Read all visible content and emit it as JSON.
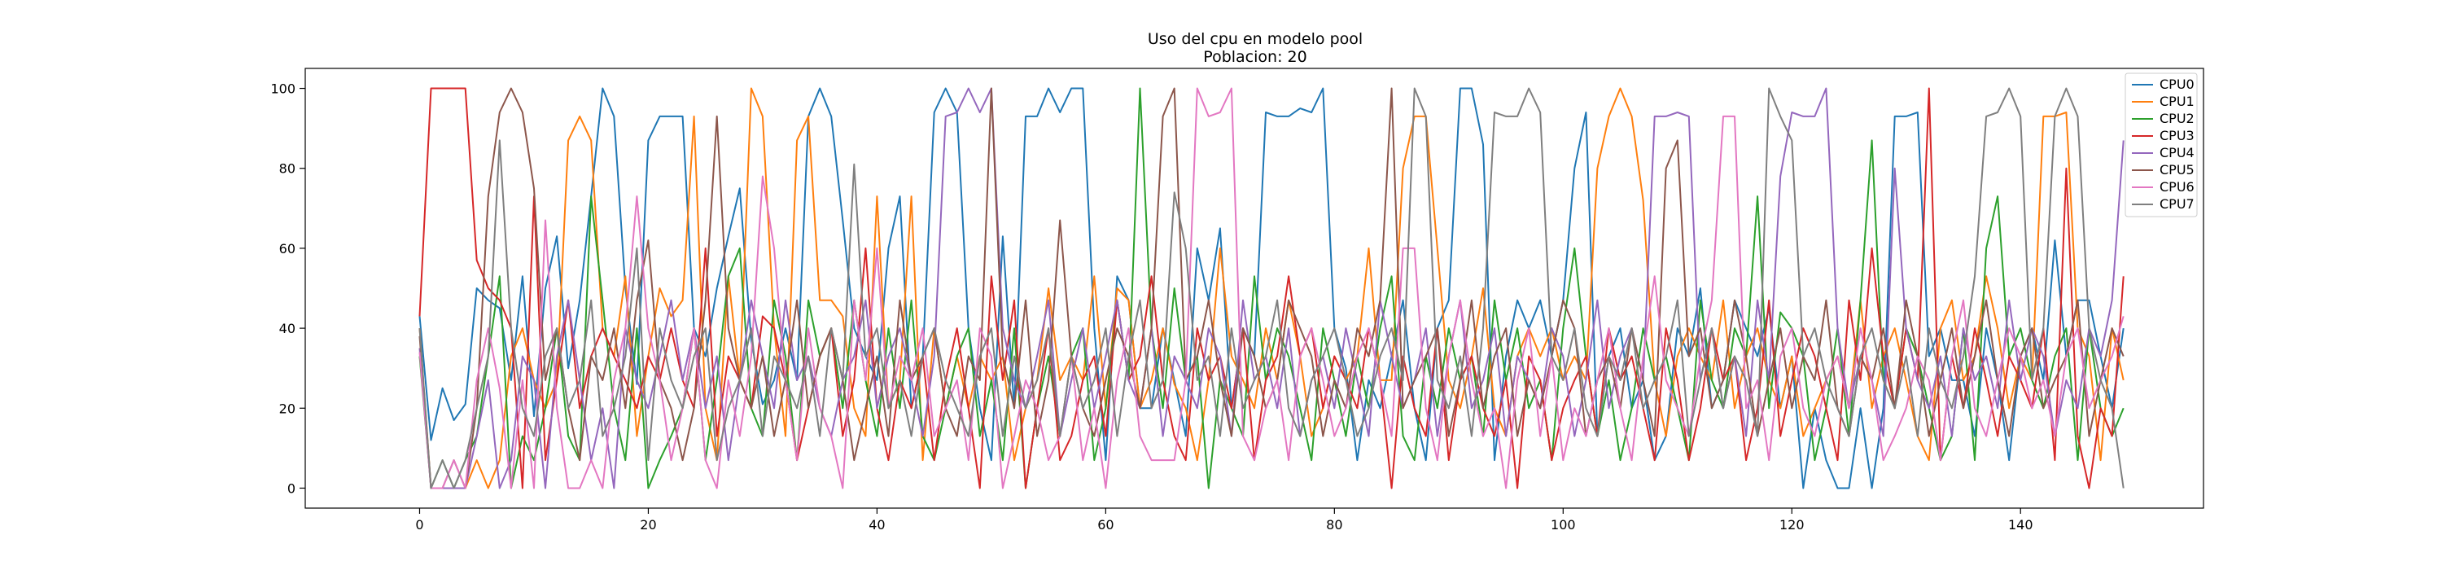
{
  "chart_data": {
    "type": "line",
    "title": "Uso del cpu en modelo pool",
    "subtitle": "Poblacion: 20",
    "xlabel": "",
    "ylabel": "",
    "xlim": [
      -10,
      156
    ],
    "ylim": [
      -5,
      105
    ],
    "xticks": [
      0,
      20,
      40,
      60,
      80,
      100,
      120,
      140
    ],
    "yticks": [
      0,
      20,
      40,
      60,
      80,
      100
    ],
    "grid": false,
    "legend_position": "top-right",
    "x": [
      0,
      1,
      2,
      3,
      4,
      5,
      6,
      7,
      8,
      9,
      10,
      11,
      12,
      13,
      14,
      15,
      16,
      17,
      18,
      19,
      20,
      21,
      22,
      23,
      24,
      25,
      26,
      27,
      28,
      29,
      30,
      31,
      32,
      33,
      34,
      35,
      36,
      37,
      38,
      39,
      40,
      41,
      42,
      43,
      44,
      45,
      46,
      47,
      48,
      49,
      50,
      51,
      52,
      53,
      54,
      55,
      56,
      57,
      58,
      59,
      60,
      61,
      62,
      63,
      64,
      65,
      66,
      67,
      68,
      69,
      70,
      71,
      72,
      73,
      74,
      75,
      76,
      77,
      78,
      79,
      80,
      81,
      82,
      83,
      84,
      85,
      86,
      87,
      88,
      89,
      90,
      91,
      92,
      93,
      94,
      95,
      96,
      97,
      98,
      99,
      100,
      101,
      102,
      103,
      104,
      105,
      106,
      107,
      108,
      109,
      110,
      111,
      112,
      113,
      114,
      115,
      116,
      117,
      118,
      119,
      120,
      121,
      122,
      123,
      124,
      125,
      126,
      127,
      128,
      129,
      130,
      131,
      132,
      133,
      134,
      135,
      136,
      137,
      138,
      139,
      140,
      141,
      142,
      143,
      144,
      145,
      146,
      147,
      148,
      149
    ],
    "series": [
      {
        "name": "CPU0",
        "color": "#1f77b4",
        "values": [
          43,
          12,
          25,
          17,
          21,
          50,
          47,
          45,
          27,
          53,
          18,
          50,
          63,
          30,
          47,
          73,
          100,
          93,
          50,
          26,
          87,
          93,
          93,
          93,
          40,
          33,
          50,
          63,
          75,
          37,
          21,
          27,
          40,
          27,
          93,
          100,
          93,
          67,
          40,
          33,
          27,
          60,
          73,
          20,
          33,
          94,
          100,
          94,
          40,
          20,
          7,
          63,
          20,
          93,
          93,
          100,
          94,
          100,
          100,
          40,
          7,
          53,
          47,
          20,
          20,
          40,
          27,
          13,
          60,
          47,
          65,
          20,
          40,
          33,
          94,
          93,
          93,
          95,
          94,
          100,
          40,
          30,
          7,
          27,
          20,
          33,
          47,
          20,
          7,
          40,
          47,
          100,
          100,
          86,
          7,
          33,
          47,
          40,
          47,
          33,
          47,
          80,
          94,
          13,
          33,
          40,
          20,
          27,
          7,
          13,
          40,
          33,
          50,
          20,
          27,
          47,
          40,
          33,
          45,
          20,
          33,
          0,
          20,
          7,
          0,
          0,
          20,
          0,
          20,
          93,
          93,
          94,
          33,
          40,
          27,
          27,
          13,
          40,
          27,
          7,
          33,
          40,
          27,
          62,
          33,
          47,
          47,
          33,
          20,
          40
        ]
      },
      {
        "name": "CPU1",
        "color": "#ff7f0e",
        "values": [
          40,
          0,
          0,
          0,
          0,
          7,
          0,
          7,
          33,
          40,
          27,
          20,
          27,
          87,
          93,
          87,
          40,
          33,
          53,
          13,
          33,
          50,
          43,
          47,
          93,
          20,
          7,
          53,
          27,
          100,
          93,
          40,
          13,
          87,
          93,
          47,
          47,
          43,
          20,
          13,
          73,
          20,
          27,
          73,
          7,
          40,
          20,
          33,
          20,
          33,
          27,
          33,
          7,
          20,
          27,
          50,
          27,
          33,
          27,
          53,
          20,
          50,
          47,
          20,
          27,
          40,
          26,
          20,
          7,
          27,
          60,
          33,
          27,
          20,
          40,
          27,
          47,
          33,
          13,
          20,
          33,
          27,
          33,
          60,
          27,
          27,
          80,
          93,
          93,
          60,
          27,
          20,
          33,
          50,
          20,
          13,
          33,
          40,
          33,
          40,
          27,
          33,
          27,
          80,
          93,
          100,
          93,
          72,
          27,
          13,
          33,
          40,
          33,
          27,
          47,
          20,
          33,
          40,
          27,
          20,
          33,
          13,
          20,
          27,
          33,
          20,
          47,
          20,
          33,
          40,
          27,
          13,
          7,
          40,
          47,
          27,
          33,
          53,
          40,
          20,
          33,
          27,
          93,
          93,
          94,
          40,
          33,
          7,
          40,
          27
        ]
      },
      {
        "name": "CPU2",
        "color": "#2ca02c",
        "values": [
          33,
          0,
          7,
          0,
          7,
          13,
          33,
          53,
          0,
          13,
          7,
          20,
          40,
          13,
          7,
          73,
          47,
          20,
          7,
          40,
          0,
          7,
          13,
          20,
          40,
          7,
          27,
          53,
          60,
          20,
          13,
          47,
          33,
          7,
          47,
          33,
          40,
          20,
          47,
          27,
          13,
          40,
          20,
          47,
          13,
          7,
          20,
          33,
          40,
          13,
          27,
          7,
          40,
          0,
          20,
          33,
          13,
          33,
          40,
          7,
          20,
          47,
          27,
          100,
          40,
          20,
          50,
          27,
          33,
          0,
          27,
          20,
          13,
          53,
          27,
          40,
          33,
          20,
          7,
          40,
          27,
          13,
          33,
          20,
          40,
          53,
          13,
          7,
          33,
          20,
          40,
          27,
          33,
          13,
          47,
          27,
          40,
          20,
          27,
          7,
          40,
          60,
          33,
          13,
          27,
          7,
          20,
          40,
          27,
          33,
          20,
          7,
          47,
          27,
          20,
          40,
          33,
          73,
          20,
          44,
          40,
          33,
          7,
          20,
          40,
          13,
          47,
          87,
          27,
          20,
          40,
          33,
          20,
          7,
          13,
          40,
          7,
          60,
          73,
          33,
          40,
          27,
          20,
          33,
          40,
          7,
          40,
          20,
          13,
          20
        ]
      },
      {
        "name": "CPU3",
        "color": "#d62728",
        "values": [
          43,
          100,
          100,
          100,
          100,
          57,
          50,
          47,
          40,
          0,
          73,
          7,
          27,
          47,
          20,
          33,
          40,
          33,
          27,
          20,
          33,
          27,
          40,
          27,
          20,
          60,
          13,
          33,
          27,
          20,
          43,
          40,
          27,
          7,
          20,
          33,
          40,
          13,
          27,
          60,
          20,
          7,
          27,
          20,
          33,
          7,
          27,
          40,
          20,
          0,
          53,
          27,
          47,
          0,
          20,
          40,
          7,
          13,
          27,
          33,
          13,
          47,
          27,
          33,
          53,
          27,
          13,
          7,
          40,
          27,
          33,
          20,
          40,
          7,
          27,
          33,
          53,
          33,
          40,
          20,
          33,
          27,
          20,
          40,
          27,
          0,
          33,
          20,
          13,
          40,
          7,
          27,
          33,
          20,
          13,
          27,
          0,
          33,
          27,
          7,
          20,
          27,
          33,
          13,
          40,
          27,
          33,
          20,
          7,
          40,
          27,
          7,
          20,
          40,
          27,
          33,
          7,
          20,
          47,
          13,
          27,
          40,
          33,
          20,
          7,
          47,
          27,
          60,
          33,
          20,
          40,
          27,
          100,
          7,
          33,
          20,
          40,
          27,
          13,
          33,
          27,
          20,
          40,
          7,
          80,
          13,
          0,
          20,
          13,
          53
        ]
      },
      {
        "name": "CPU4",
        "color": "#9467bd",
        "values": [
          35,
          0,
          0,
          0,
          0,
          13,
          27,
          0,
          7,
          33,
          27,
          0,
          33,
          47,
          27,
          7,
          20,
          0,
          40,
          27,
          20,
          33,
          47,
          27,
          40,
          20,
          33,
          7,
          27,
          47,
          33,
          20,
          47,
          27,
          33,
          20,
          13,
          27,
          33,
          47,
          20,
          33,
          40,
          27,
          13,
          33,
          93,
          94,
          100,
          94,
          100,
          40,
          27,
          20,
          33,
          47,
          13,
          27,
          40,
          20,
          33,
          47,
          27,
          20,
          40,
          13,
          33,
          27,
          20,
          40,
          33,
          13,
          47,
          27,
          33,
          20,
          40,
          13,
          27,
          33,
          20,
          40,
          27,
          13,
          47,
          33,
          20,
          27,
          40,
          13,
          33,
          47,
          20,
          27,
          40,
          13,
          33,
          27,
          20,
          40,
          33,
          13,
          27,
          47,
          20,
          33,
          40,
          27,
          93,
          93,
          94,
          93,
          27,
          40,
          20,
          33,
          13,
          47,
          27,
          78,
          94,
          93,
          93,
          100,
          40,
          20,
          33,
          27,
          13,
          80,
          40,
          27,
          20,
          33,
          13,
          40,
          27,
          33,
          20,
          47,
          27,
          40,
          33,
          13,
          27,
          20,
          40,
          33,
          47,
          87
        ]
      },
      {
        "name": "CPU5",
        "color": "#8c564b",
        "values": [
          38,
          0,
          0,
          7,
          0,
          20,
          73,
          94,
          100,
          94,
          75,
          27,
          40,
          20,
          7,
          33,
          27,
          40,
          20,
          47,
          62,
          27,
          20,
          7,
          20,
          47,
          93,
          40,
          27,
          20,
          33,
          13,
          27,
          47,
          20,
          33,
          40,
          27,
          7,
          20,
          33,
          13,
          47,
          27,
          33,
          40,
          20,
          13,
          33,
          27,
          100,
          33,
          20,
          47,
          13,
          27,
          67,
          33,
          20,
          13,
          27,
          40,
          33,
          20,
          40,
          93,
          100,
          27,
          33,
          47,
          27,
          13,
          40,
          33,
          20,
          27,
          47,
          40,
          33,
          13,
          27,
          20,
          40,
          33,
          47,
          100,
          20,
          27,
          33,
          40,
          13,
          27,
          47,
          20,
          33,
          40,
          13,
          27,
          20,
          33,
          47,
          40,
          13,
          27,
          33,
          20,
          40,
          27,
          13,
          80,
          87,
          33,
          40,
          20,
          27,
          47,
          33,
          13,
          27,
          40,
          20,
          33,
          27,
          47,
          20,
          13,
          33,
          27,
          40,
          20,
          47,
          33,
          13,
          27,
          40,
          20,
          33,
          47,
          27,
          13,
          33,
          40,
          20,
          27,
          33,
          47,
          13,
          27,
          40,
          33
        ]
      },
      {
        "name": "CPU6",
        "color": "#e377c2",
        "values": [
          34,
          0,
          0,
          7,
          0,
          27,
          40,
          25,
          0,
          27,
          0,
          67,
          20,
          0,
          0,
          7,
          0,
          27,
          40,
          73,
          40,
          27,
          7,
          20,
          40,
          7,
          0,
          27,
          13,
          33,
          78,
          60,
          27,
          7,
          40,
          20,
          13,
          0,
          47,
          27,
          60,
          20,
          33,
          27,
          40,
          13,
          20,
          27,
          7,
          40,
          33,
          0,
          13,
          27,
          20,
          7,
          13,
          33,
          7,
          20,
          0,
          27,
          40,
          13,
          7,
          7,
          7,
          27,
          100,
          93,
          94,
          100,
          13,
          7,
          20,
          27,
          7,
          33,
          40,
          27,
          13,
          20,
          33,
          40,
          27,
          13,
          60,
          60,
          20,
          7,
          33,
          47,
          27,
          13,
          20,
          0,
          27,
          40,
          13,
          33,
          7,
          20,
          13,
          27,
          40,
          20,
          7,
          33,
          53,
          27,
          20,
          13,
          33,
          47,
          93,
          93,
          20,
          27,
          7,
          33,
          40,
          20,
          13,
          27,
          33,
          20,
          40,
          27,
          7,
          13,
          20,
          33,
          27,
          7,
          33,
          47,
          20,
          13,
          27,
          40,
          33,
          20,
          27,
          13,
          33,
          40,
          20,
          27,
          33,
          43
        ]
      },
      {
        "name": "CPU7",
        "color": "#7f7f7f",
        "values": [
          40,
          0,
          7,
          0,
          7,
          20,
          33,
          87,
          40,
          20,
          13,
          33,
          40,
          20,
          27,
          47,
          13,
          20,
          33,
          60,
          7,
          40,
          27,
          20,
          33,
          40,
          7,
          20,
          27,
          40,
          13,
          33,
          27,
          20,
          33,
          13,
          40,
          27,
          81,
          33,
          40,
          20,
          27,
          13,
          33,
          40,
          27,
          20,
          13,
          33,
          40,
          13,
          33,
          20,
          27,
          40,
          13,
          33,
          20,
          27,
          40,
          13,
          33,
          47,
          20,
          27,
          74,
          60,
          27,
          33,
          13,
          40,
          20,
          27,
          33,
          47,
          20,
          13,
          27,
          33,
          40,
          27,
          13,
          20,
          33,
          40,
          27,
          100,
          93,
          27,
          20,
          33,
          13,
          40,
          94,
          93,
          93,
          100,
          94,
          33,
          27,
          40,
          20,
          13,
          33,
          27,
          40,
          20,
          27,
          33,
          47,
          13,
          27,
          40,
          20,
          33,
          27,
          13,
          100,
          93,
          87,
          33,
          40,
          27,
          20,
          13,
          33,
          40,
          27,
          20,
          33,
          13,
          40,
          27,
          20,
          33,
          53,
          93,
          94,
          100,
          93,
          27,
          40,
          93,
          100,
          93,
          40,
          27,
          20,
          0
        ]
      }
    ]
  }
}
